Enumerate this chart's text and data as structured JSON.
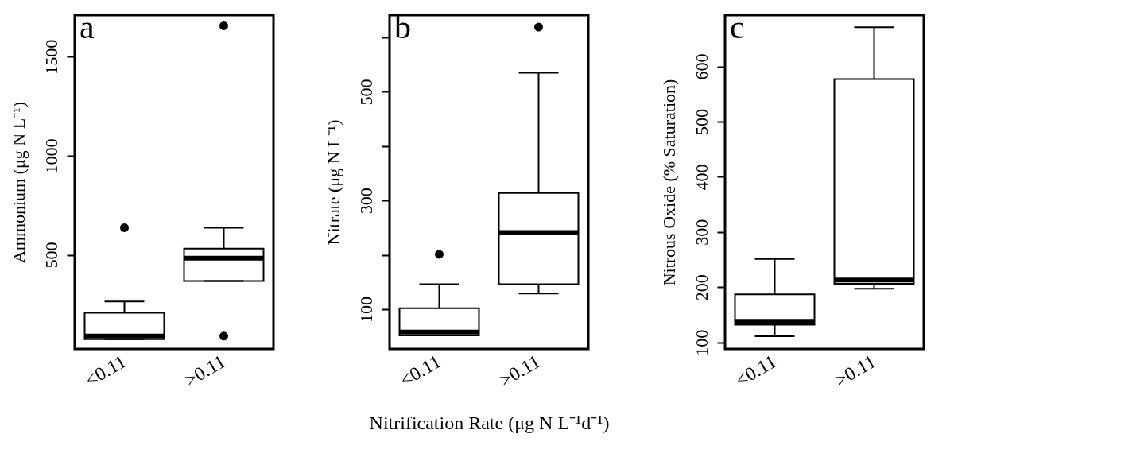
{
  "chart_data": [
    {
      "type": "box",
      "title": "a",
      "ylabel": "Ammonium (μg N L⁻¹)",
      "categories": [
        "<0.11",
        ">0.11"
      ],
      "ylim": [
        25,
        1710
      ],
      "yticks": [
        500,
        1000,
        1500
      ],
      "grid": false,
      "boxes": [
        {
          "low": 74,
          "q1": 74,
          "median": 90,
          "q3": 208,
          "high": 265,
          "outliers": [
            637
          ]
        },
        {
          "low": 368,
          "q1": 368,
          "median": 483,
          "q3": 532,
          "high": 637,
          "outliers": [
            90,
            1656
          ]
        }
      ]
    },
    {
      "type": "box",
      "title": "b",
      "ylabel": "Nitrate (μg N L⁻¹)",
      "xlabel": "Nitrification Rate (μg N L⁻¹d⁻¹)",
      "categories": [
        "<0.11",
        ">0.11"
      ],
      "ylim": [
        27,
        641
      ],
      "yticks": [
        100,
        {
          "value": 200,
          "label": null
        },
        300,
        {
          "value": 400,
          "label": null
        },
        500,
        {
          "value": 600,
          "label": null
        }
      ],
      "grid": false,
      "boxes": [
        {
          "low": 52,
          "q1": 52,
          "median": 58,
          "q3": 102,
          "high": 146,
          "outliers": [
            201
          ]
        },
        {
          "low": 129,
          "q1": 146,
          "median": 241,
          "q3": 314,
          "high": 535,
          "outliers": [
            619
          ]
        }
      ]
    },
    {
      "type": "box",
      "title": "c",
      "ylabel": "Nitrous Oxide (% Saturation)",
      "categories": [
        "<0.11",
        ">0.11"
      ],
      "ylim": [
        88,
        693
      ],
      "yticks": [
        100,
        200,
        300,
        400,
        500,
        600
      ],
      "grid": false,
      "boxes": [
        {
          "low": 111,
          "q1": 132,
          "median": 138,
          "q3": 187,
          "high": 251
        },
        {
          "low": 197,
          "q1": 206,
          "median": 213,
          "q3": 577,
          "high": 671
        }
      ]
    }
  ]
}
